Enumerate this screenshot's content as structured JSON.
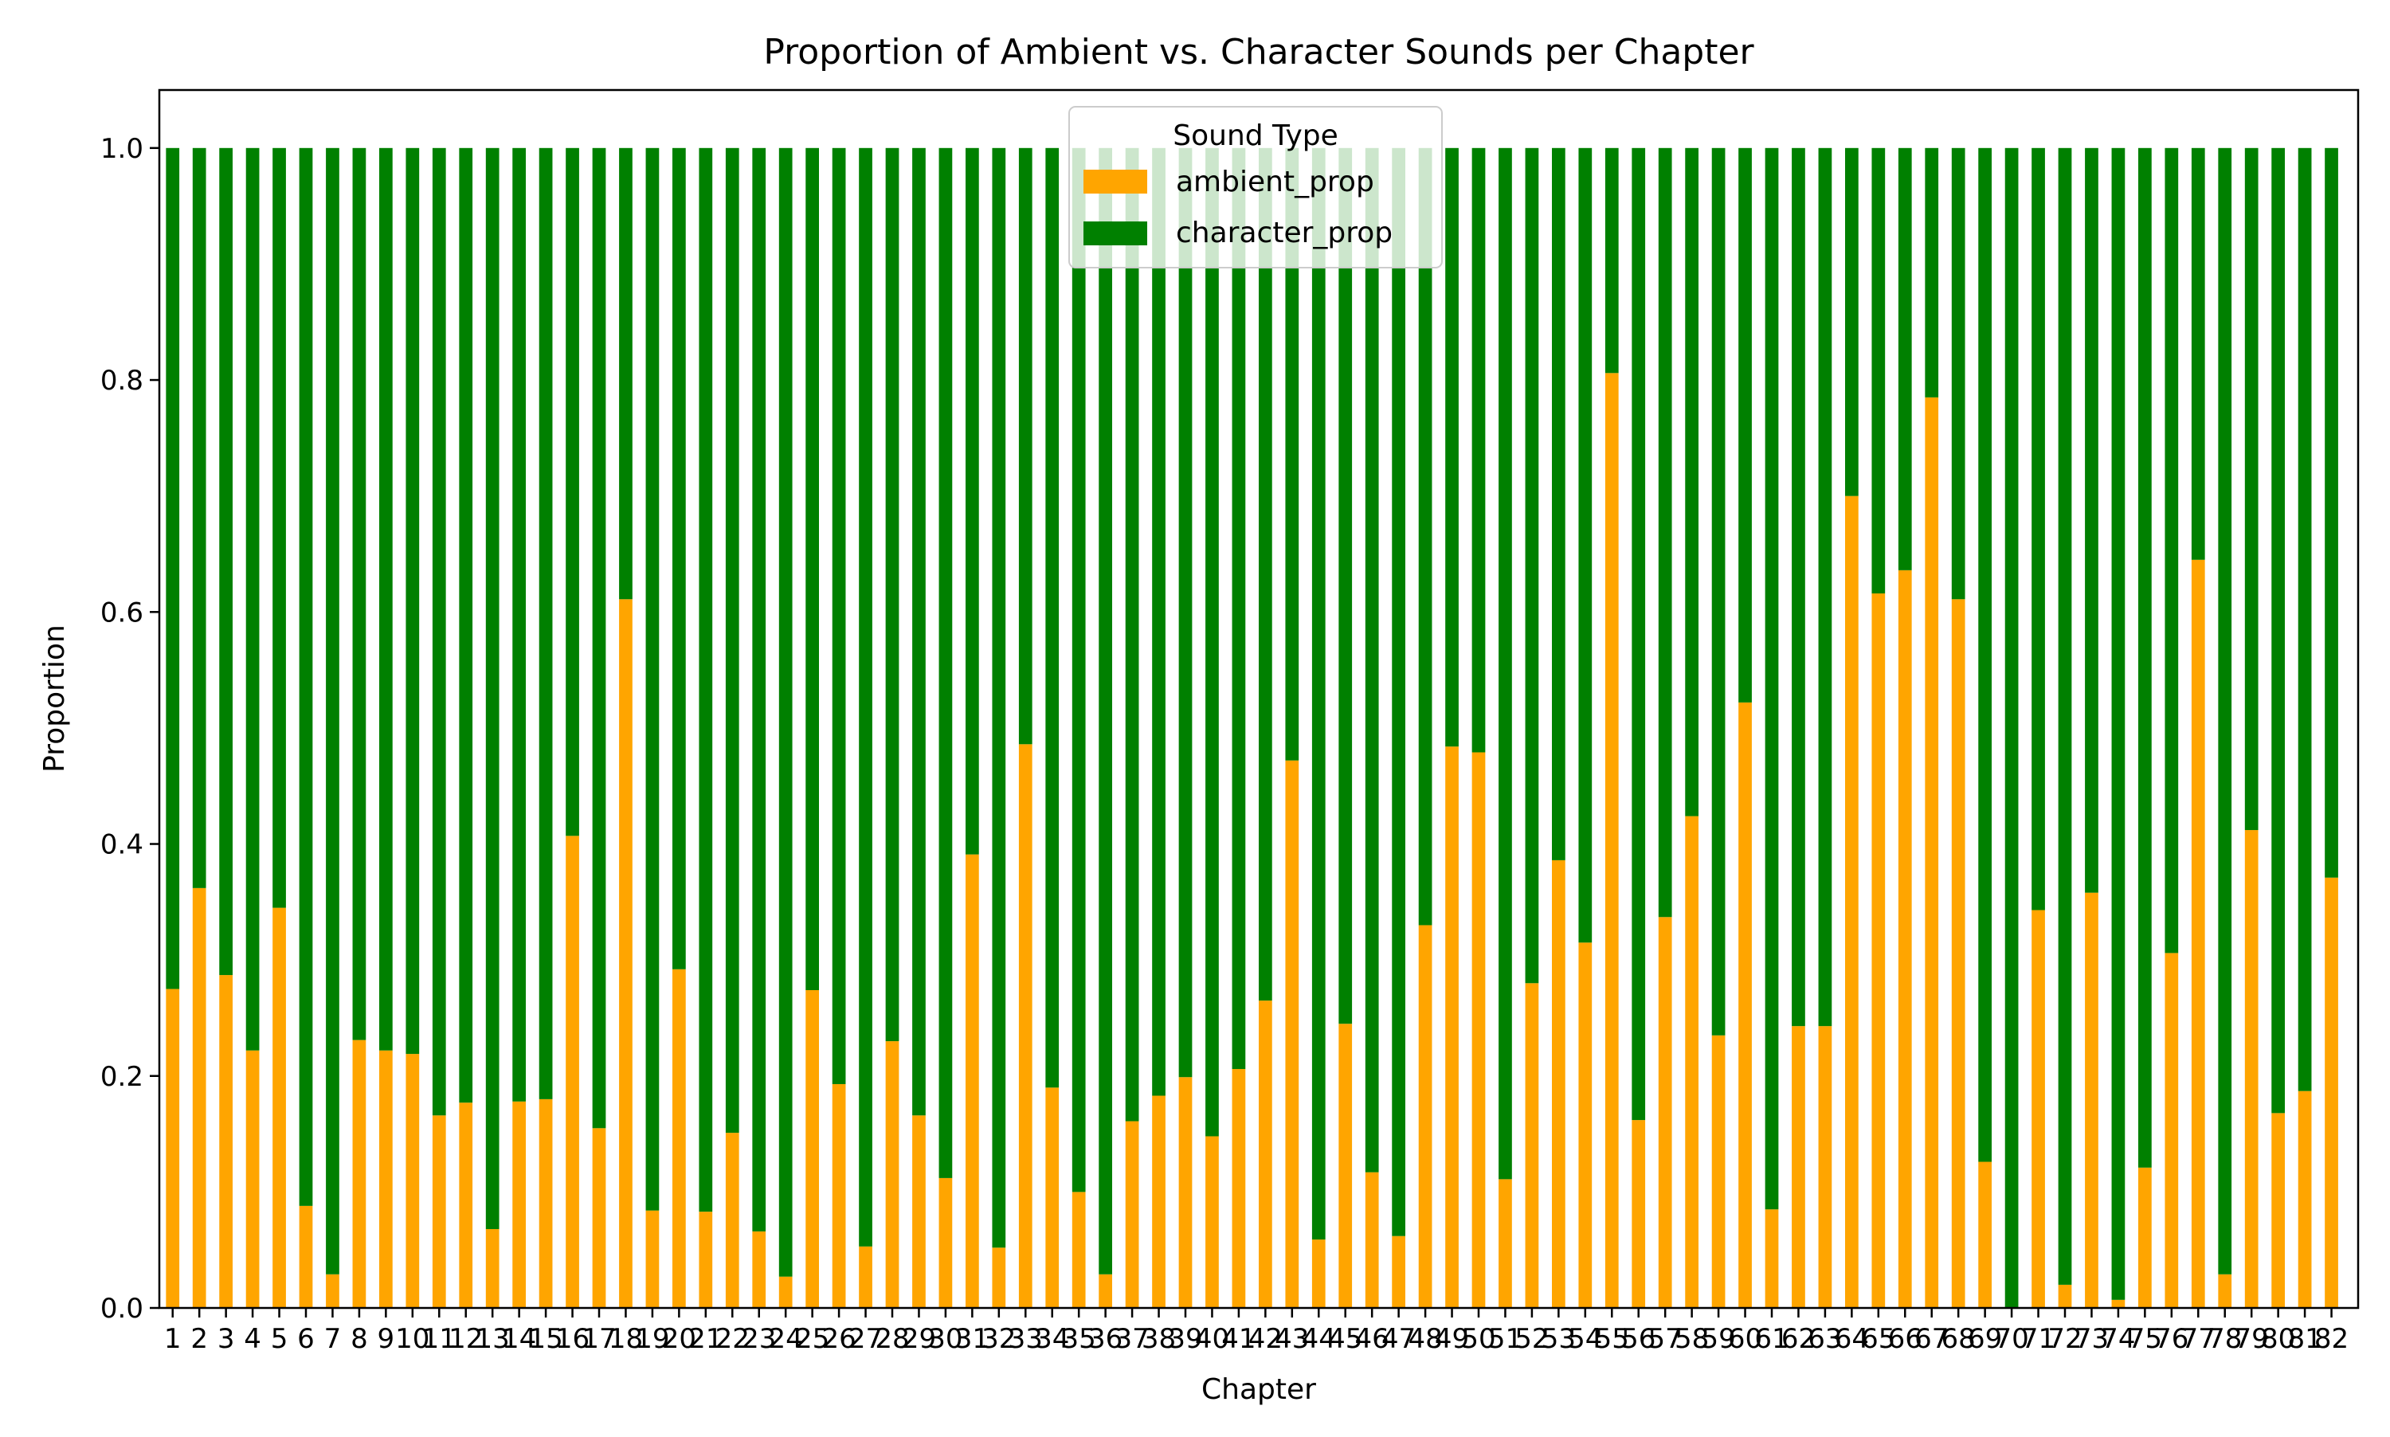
{
  "chart_data": {
    "type": "bar",
    "stacked": true,
    "title": "Proportion of Ambient vs. Character Sounds per Chapter",
    "xlabel": "Chapter",
    "ylabel": "Proportion",
    "ylim": [
      0,
      1.05
    ],
    "yticks": [
      "0.0",
      "0.2",
      "0.4",
      "0.6",
      "0.8",
      "1.0"
    ],
    "grid": false,
    "legend": {
      "title": "Sound Type",
      "placement": "top-center"
    },
    "categories": [
      "1",
      "2",
      "3",
      "4",
      "5",
      "6",
      "7",
      "8",
      "9",
      "10",
      "11",
      "12",
      "13",
      "14",
      "15",
      "16",
      "17",
      "18",
      "19",
      "20",
      "21",
      "22",
      "23",
      "24",
      "25",
      "26",
      "27",
      "28",
      "29",
      "30",
      "31",
      "32",
      "33",
      "34",
      "35",
      "36",
      "37",
      "38",
      "39",
      "40",
      "41",
      "42",
      "43",
      "44",
      "45",
      "46",
      "47",
      "48",
      "49",
      "50",
      "51",
      "52",
      "53",
      "54",
      "55",
      "56",
      "57",
      "58",
      "59",
      "60",
      "61",
      "62",
      "63",
      "64",
      "65",
      "66",
      "67",
      "68",
      "69",
      "70",
      "71",
      "72",
      "73",
      "74",
      "75",
      "76",
      "77",
      "78",
      "79",
      "80",
      "81",
      "82"
    ],
    "series": [
      {
        "name": "ambient_prop",
        "color": "#ffa500",
        "values": [
          0.275,
          0.362,
          0.287,
          0.222,
          0.345,
          0.088,
          0.029,
          0.231,
          0.222,
          0.219,
          0.166,
          0.177,
          0.068,
          0.178,
          0.18,
          0.407,
          0.155,
          0.611,
          0.084,
          0.292,
          0.083,
          0.151,
          0.066,
          0.027,
          0.274,
          0.193,
          0.053,
          0.23,
          0.166,
          0.112,
          0.391,
          0.052,
          0.486,
          0.19,
          0.1,
          0.029,
          0.161,
          0.183,
          0.199,
          0.148,
          0.206,
          0.265,
          0.472,
          0.059,
          0.245,
          0.117,
          0.062,
          0.33,
          0.484,
          0.479,
          0.111,
          0.28,
          0.386,
          0.315,
          0.806,
          0.162,
          0.337,
          0.424,
          0.235,
          0.522,
          0.085,
          0.243,
          0.243,
          0.7,
          0.616,
          0.636,
          0.785,
          0.611,
          0.126,
          0.0,
          0.343,
          0.02,
          0.358,
          0.007,
          0.121,
          0.306,
          0.645,
          0.029,
          0.412,
          0.168,
          0.187,
          0.371
        ]
      },
      {
        "name": "character_prop",
        "color": "#008000",
        "values": [
          0.725,
          0.638,
          0.713,
          0.778,
          0.655,
          0.912,
          0.971,
          0.769,
          0.778,
          0.781,
          0.834,
          0.823,
          0.932,
          0.822,
          0.82,
          0.593,
          0.845,
          0.389,
          0.916,
          0.708,
          0.917,
          0.849,
          0.934,
          0.973,
          0.726,
          0.807,
          0.947,
          0.77,
          0.834,
          0.888,
          0.609,
          0.948,
          0.514,
          0.81,
          0.9,
          0.971,
          0.839,
          0.817,
          0.801,
          0.852,
          0.794,
          0.735,
          0.528,
          0.941,
          0.755,
          0.883,
          0.938,
          0.67,
          0.516,
          0.521,
          0.889,
          0.72,
          0.614,
          0.685,
          0.194,
          0.838,
          0.663,
          0.576,
          0.765,
          0.478,
          0.915,
          0.757,
          0.757,
          0.3,
          0.384,
          0.364,
          0.215,
          0.389,
          0.874,
          1.0,
          0.657,
          0.98,
          0.642,
          0.993,
          0.879,
          0.694,
          0.355,
          0.971,
          0.588,
          0.832,
          0.813,
          0.629
        ]
      }
    ]
  }
}
